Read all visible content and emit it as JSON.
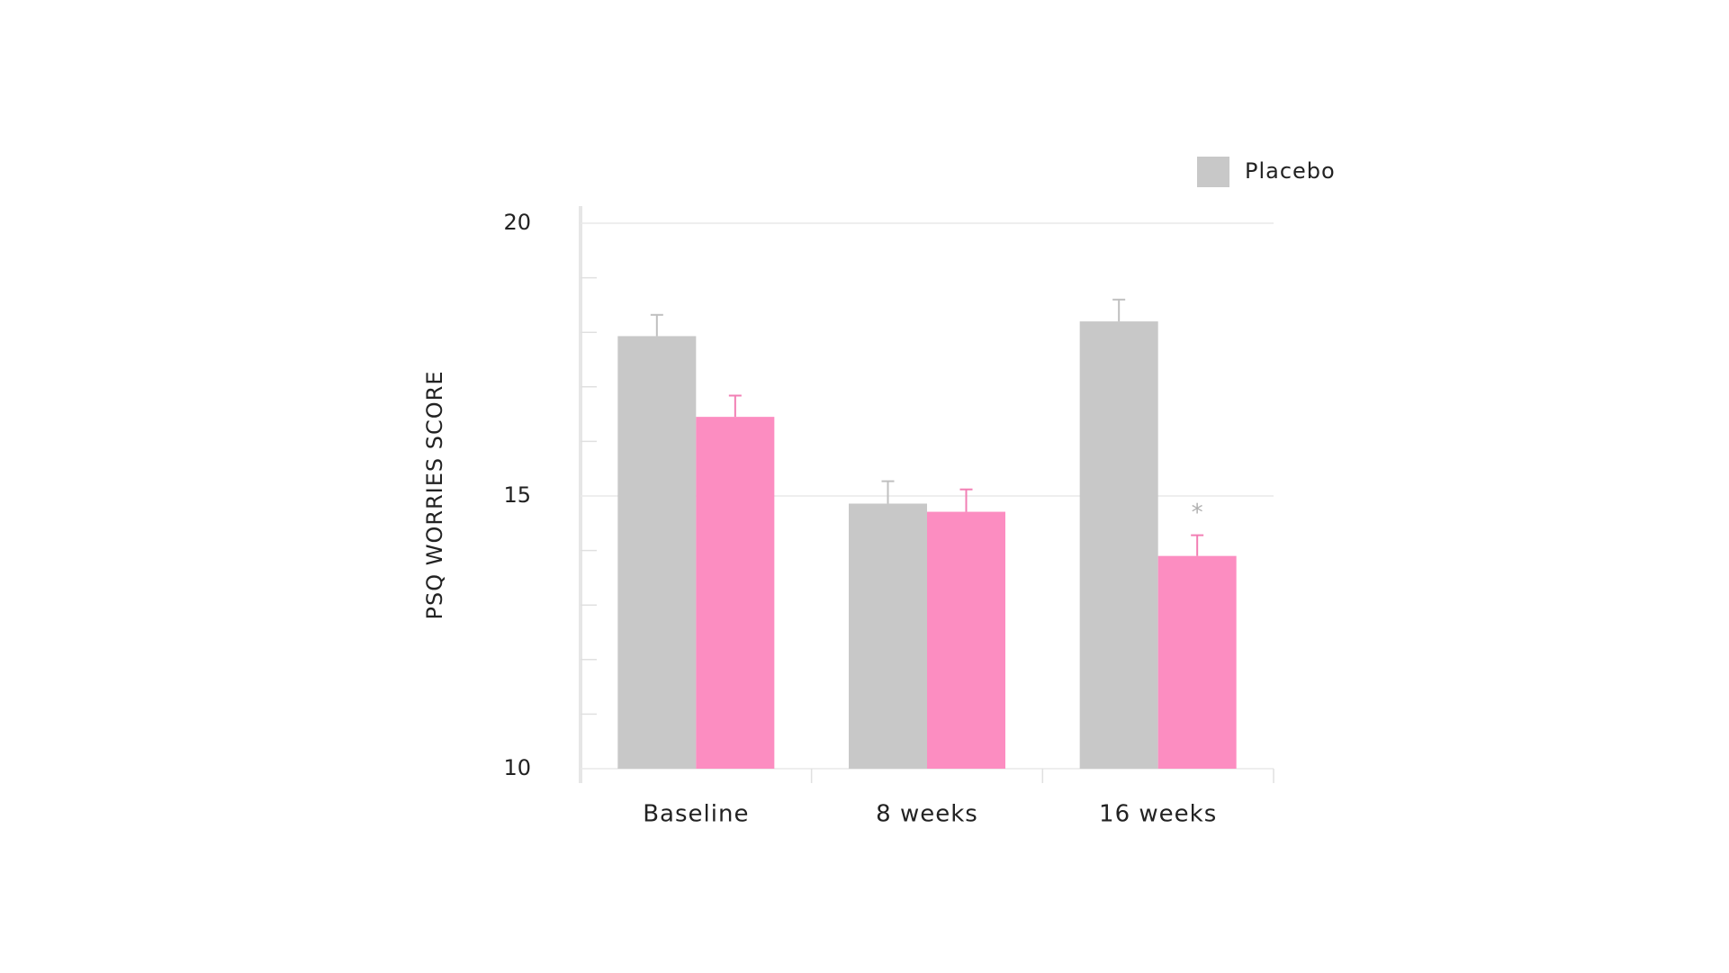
{
  "chart_data": {
    "type": "bar",
    "y_label": "PSQ WORRIES SCORE",
    "categories": [
      "Baseline",
      "8 weeks",
      "16 weeks"
    ],
    "series": [
      {
        "name": "Placebo",
        "color": "#c8c8c8",
        "error_color": "#c0c0c0",
        "values": [
          17.93,
          14.86,
          18.2
        ],
        "errors": [
          0.39,
          0.41,
          0.4
        ]
      },
      {
        "color": "#fc8dc1",
        "error_color": "#f27fb4",
        "values": [
          16.45,
          14.71,
          13.9
        ],
        "errors": [
          0.39,
          0.41,
          0.38
        ]
      }
    ],
    "annotations": [
      {
        "text": "*",
        "series": 1,
        "index": 2
      }
    ],
    "ylim": [
      10,
      20
    ],
    "yticks": [
      10,
      15,
      20
    ],
    "minor_yticks": [
      11,
      12,
      13,
      14,
      16,
      17,
      18,
      19
    ],
    "grid": true,
    "legend": "top-right"
  }
}
